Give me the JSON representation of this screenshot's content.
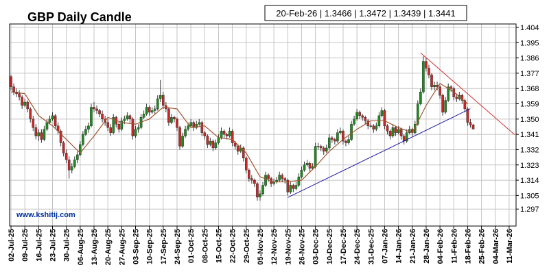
{
  "chart_data": {
    "type": "candlestick",
    "title": "GBP Daily Candle",
    "info_label": "20-Feb-26 | 1.3466 | 1.3472 | 1.3439 | 1.3441",
    "watermark": "www.kshitij.com",
    "up_color": "#1f8a1f",
    "down_color": "#c62828",
    "grid": true,
    "xlim": [
      "02-Jul-25",
      "13-Mar-26"
    ],
    "xticks": [
      "02-Jul-25",
      "09-Jul-25",
      "16-Jul-25",
      "23-Jul-25",
      "30-Jul-25",
      "06-Aug-25",
      "13-Aug-25",
      "20-Aug-25",
      "27-Aug-25",
      "03-Sep-25",
      "10-Sep-25",
      "17-Sep-25",
      "24-Sep-25",
      "01-Oct-25",
      "08-Oct-25",
      "15-Oct-25",
      "22-Oct-25",
      "29-Oct-25",
      "05-Nov-25",
      "12-Nov-25",
      "19-Nov-25",
      "26-Nov-25",
      "03-Dec-25",
      "10-Dec-25",
      "17-Dec-25",
      "24-Dec-25",
      "31-Dec-25",
      "07-Jan-26",
      "14-Jan-26",
      "21-Jan-26",
      "28-Jan-26",
      "04-Feb-26",
      "11-Feb-26",
      "18-Feb-26",
      "25-Feb-26",
      "04-Mar-26",
      "11-Mar-26"
    ],
    "ylim": [
      1.287,
      1.406
    ],
    "yticks": [
      1.297,
      1.305,
      1.314,
      1.323,
      1.332,
      1.341,
      {
        "value": 1.35,
        "label": "1.350"
      },
      1.359,
      1.368,
      1.377,
      1.386,
      1.395,
      1.404
    ],
    "x": [
      "02-Jul-25",
      "03-Jul-25",
      "04-Jul-25",
      "07-Jul-25",
      "08-Jul-25",
      "09-Jul-25",
      "10-Jul-25",
      "11-Jul-25",
      "14-Jul-25",
      "15-Jul-25",
      "16-Jul-25",
      "17-Jul-25",
      "18-Jul-25",
      "21-Jul-25",
      "22-Jul-25",
      "23-Jul-25",
      "24-Jul-25",
      "25-Jul-25",
      "28-Jul-25",
      "29-Jul-25",
      "30-Jul-25",
      "31-Jul-25",
      "01-Aug-25",
      "04-Aug-25",
      "05-Aug-25",
      "06-Aug-25",
      "07-Aug-25",
      "08-Aug-25",
      "11-Aug-25",
      "12-Aug-25",
      "13-Aug-25",
      "14-Aug-25",
      "15-Aug-25",
      "18-Aug-25",
      "19-Aug-25",
      "20-Aug-25",
      "21-Aug-25",
      "22-Aug-25",
      "25-Aug-25",
      "26-Aug-25",
      "27-Aug-25",
      "28-Aug-25",
      "29-Aug-25",
      "01-Sep-25",
      "02-Sep-25",
      "03-Sep-25",
      "04-Sep-25",
      "05-Sep-25",
      "08-Sep-25",
      "09-Sep-25",
      "10-Sep-25",
      "11-Sep-25",
      "12-Sep-25",
      "15-Sep-25",
      "16-Sep-25",
      "17-Sep-25",
      "18-Sep-25",
      "19-Sep-25",
      "22-Sep-25",
      "23-Sep-25",
      "24-Sep-25",
      "25-Sep-25",
      "26-Sep-25",
      "29-Sep-25",
      "30-Sep-25",
      "01-Oct-25",
      "02-Oct-25",
      "03-Oct-25",
      "06-Oct-25",
      "07-Oct-25",
      "08-Oct-25",
      "09-Oct-25",
      "10-Oct-25",
      "13-Oct-25",
      "14-Oct-25",
      "15-Oct-25",
      "16-Oct-25",
      "17-Oct-25",
      "20-Oct-25",
      "21-Oct-25",
      "22-Oct-25",
      "23-Oct-25",
      "24-Oct-25",
      "27-Oct-25",
      "28-Oct-25",
      "29-Oct-25",
      "30-Oct-25",
      "31-Oct-25",
      "03-Nov-25",
      "04-Nov-25",
      "05-Nov-25",
      "06-Nov-25",
      "07-Nov-25",
      "10-Nov-25",
      "11-Nov-25",
      "12-Nov-25",
      "13-Nov-25",
      "14-Nov-25",
      "17-Nov-25",
      "18-Nov-25",
      "19-Nov-25",
      "20-Nov-25",
      "21-Nov-25",
      "24-Nov-25",
      "25-Nov-25",
      "26-Nov-25",
      "27-Nov-25",
      "28-Nov-25",
      "01-Dec-25",
      "02-Dec-25",
      "03-Dec-25",
      "04-Dec-25",
      "05-Dec-25",
      "08-Dec-25",
      "09-Dec-25",
      "10-Dec-25",
      "11-Dec-25",
      "12-Dec-25",
      "15-Dec-25",
      "16-Dec-25",
      "17-Dec-25",
      "18-Dec-25",
      "19-Dec-25",
      "22-Dec-25",
      "23-Dec-25",
      "24-Dec-25",
      "25-Dec-25",
      "26-Dec-25",
      "29-Dec-25",
      "30-Dec-25",
      "31-Dec-25",
      "01-Jan-26",
      "02-Jan-26",
      "05-Jan-26",
      "06-Jan-26",
      "07-Jan-26",
      "08-Jan-26",
      "09-Jan-26",
      "12-Jan-26",
      "13-Jan-26",
      "14-Jan-26",
      "15-Jan-26",
      "16-Jan-26",
      "19-Jan-26",
      "20-Jan-26",
      "21-Jan-26",
      "22-Jan-26",
      "23-Jan-26",
      "26-Jan-26",
      "27-Jan-26",
      "28-Jan-26",
      "29-Jan-26",
      "30-Jan-26",
      "02-Feb-26",
      "03-Feb-26",
      "04-Feb-26",
      "05-Feb-26",
      "06-Feb-26",
      "09-Feb-26",
      "10-Feb-26",
      "11-Feb-26",
      "12-Feb-26",
      "13-Feb-26",
      "16-Feb-26",
      "17-Feb-26",
      "18-Feb-26",
      "19-Feb-26",
      "20-Feb-26"
    ],
    "candles": [
      [
        1.375,
        1.376,
        1.367,
        1.369
      ],
      [
        1.369,
        1.371,
        1.364,
        1.366
      ],
      [
        1.366,
        1.368,
        1.363,
        1.365
      ],
      [
        1.365,
        1.367,
        1.361,
        1.363
      ],
      [
        1.363,
        1.364,
        1.356,
        1.358
      ],
      [
        1.358,
        1.362,
        1.357,
        1.36
      ],
      [
        1.36,
        1.361,
        1.354,
        1.356
      ],
      [
        1.356,
        1.357,
        1.348,
        1.35
      ],
      [
        1.35,
        1.352,
        1.343,
        1.345
      ],
      [
        1.345,
        1.347,
        1.338,
        1.34
      ],
      [
        1.34,
        1.344,
        1.337,
        1.342
      ],
      [
        1.342,
        1.344,
        1.336,
        1.338
      ],
      [
        1.338,
        1.346,
        1.337,
        1.344
      ],
      [
        1.344,
        1.35,
        1.343,
        1.348
      ],
      [
        1.348,
        1.352,
        1.347,
        1.35
      ],
      [
        1.35,
        1.354,
        1.349,
        1.352
      ],
      [
        1.352,
        1.353,
        1.344,
        1.346
      ],
      [
        1.346,
        1.348,
        1.341,
        1.343
      ],
      [
        1.343,
        1.344,
        1.334,
        1.336
      ],
      [
        1.336,
        1.337,
        1.328,
        1.33
      ],
      [
        1.33,
        1.332,
        1.324,
        1.326
      ],
      [
        1.326,
        1.328,
        1.315,
        1.32
      ],
      [
        1.32,
        1.324,
        1.318,
        1.322
      ],
      [
        1.322,
        1.328,
        1.321,
        1.326
      ],
      [
        1.326,
        1.331,
        1.324,
        1.329
      ],
      [
        1.329,
        1.337,
        1.328,
        1.335
      ],
      [
        1.335,
        1.343,
        1.334,
        1.341
      ],
      [
        1.341,
        1.346,
        1.34,
        1.344
      ],
      [
        1.344,
        1.348,
        1.342,
        1.346
      ],
      [
        1.346,
        1.359,
        1.345,
        1.357
      ],
      [
        1.357,
        1.36,
        1.354,
        1.356
      ],
      [
        1.356,
        1.358,
        1.353,
        1.355
      ],
      [
        1.355,
        1.356,
        1.351,
        1.353
      ],
      [
        1.353,
        1.355,
        1.348,
        1.35
      ],
      [
        1.35,
        1.352,
        1.346,
        1.348
      ],
      [
        1.348,
        1.35,
        1.343,
        1.345
      ],
      [
        1.345,
        1.347,
        1.34,
        1.342
      ],
      [
        1.342,
        1.353,
        1.341,
        1.351
      ],
      [
        1.351,
        1.352,
        1.345,
        1.347
      ],
      [
        1.347,
        1.349,
        1.342,
        1.344
      ],
      [
        1.344,
        1.351,
        1.343,
        1.349
      ],
      [
        1.349,
        1.352,
        1.347,
        1.35
      ],
      [
        1.35,
        1.354,
        1.349,
        1.352
      ],
      [
        1.352,
        1.353,
        1.348,
        1.35
      ],
      [
        1.35,
        1.351,
        1.338,
        1.34
      ],
      [
        1.34,
        1.346,
        1.339,
        1.344
      ],
      [
        1.344,
        1.347,
        1.342,
        1.345
      ],
      [
        1.345,
        1.353,
        1.344,
        1.351
      ],
      [
        1.351,
        1.355,
        1.35,
        1.353
      ],
      [
        1.353,
        1.359,
        1.352,
        1.357
      ],
      [
        1.357,
        1.358,
        1.352,
        1.354
      ],
      [
        1.354,
        1.357,
        1.353,
        1.355
      ],
      [
        1.355,
        1.358,
        1.353,
        1.356
      ],
      [
        1.356,
        1.364,
        1.355,
        1.362
      ],
      [
        1.362,
        1.373,
        1.36,
        1.364
      ],
      [
        1.364,
        1.366,
        1.356,
        1.358
      ],
      [
        1.358,
        1.36,
        1.354,
        1.356
      ],
      [
        1.356,
        1.357,
        1.346,
        1.348
      ],
      [
        1.348,
        1.353,
        1.347,
        1.351
      ],
      [
        1.351,
        1.352,
        1.348,
        1.35
      ],
      [
        1.35,
        1.351,
        1.343,
        1.345
      ],
      [
        1.345,
        1.346,
        1.332,
        1.334
      ],
      [
        1.334,
        1.342,
        1.333,
        1.34
      ],
      [
        1.34,
        1.346,
        1.339,
        1.344
      ],
      [
        1.344,
        1.348,
        1.343,
        1.346
      ],
      [
        1.346,
        1.35,
        1.345,
        1.348
      ],
      [
        1.348,
        1.349,
        1.343,
        1.345
      ],
      [
        1.345,
        1.349,
        1.344,
        1.347
      ],
      [
        1.347,
        1.35,
        1.346,
        1.348
      ],
      [
        1.348,
        1.349,
        1.34,
        1.342
      ],
      [
        1.342,
        1.343,
        1.338,
        1.34
      ],
      [
        1.34,
        1.341,
        1.333,
        1.335
      ],
      [
        1.335,
        1.339,
        1.334,
        1.337
      ],
      [
        1.337,
        1.338,
        1.331,
        1.333
      ],
      [
        1.333,
        1.338,
        1.332,
        1.336
      ],
      [
        1.336,
        1.341,
        1.335,
        1.339
      ],
      [
        1.339,
        1.345,
        1.338,
        1.343
      ],
      [
        1.343,
        1.344,
        1.339,
        1.341
      ],
      [
        1.341,
        1.342,
        1.338,
        1.34
      ],
      [
        1.34,
        1.345,
        1.339,
        1.343
      ],
      [
        1.343,
        1.344,
        1.334,
        1.336
      ],
      [
        1.336,
        1.337,
        1.332,
        1.334
      ],
      [
        1.334,
        1.335,
        1.329,
        1.331
      ],
      [
        1.331,
        1.335,
        1.33,
        1.333
      ],
      [
        1.333,
        1.334,
        1.325,
        1.327
      ],
      [
        1.327,
        1.328,
        1.318,
        1.32
      ],
      [
        1.32,
        1.321,
        1.313,
        1.315
      ],
      [
        1.315,
        1.317,
        1.312,
        1.314
      ],
      [
        1.314,
        1.315,
        1.31,
        1.312
      ],
      [
        1.312,
        1.313,
        1.302,
        1.304
      ],
      [
        1.304,
        1.308,
        1.302,
        1.306
      ],
      [
        1.306,
        1.313,
        1.305,
        1.311
      ],
      [
        1.311,
        1.319,
        1.31,
        1.317
      ],
      [
        1.317,
        1.318,
        1.313,
        1.315
      ],
      [
        1.315,
        1.316,
        1.31,
        1.312
      ],
      [
        1.312,
        1.315,
        1.311,
        1.313
      ],
      [
        1.313,
        1.316,
        1.312,
        1.314
      ],
      [
        1.314,
        1.319,
        1.313,
        1.317
      ],
      [
        1.317,
        1.318,
        1.313,
        1.315
      ],
      [
        1.315,
        1.316,
        1.312,
        1.314
      ],
      [
        1.314,
        1.315,
        1.305,
        1.307
      ],
      [
        1.307,
        1.313,
        1.306,
        1.311
      ],
      [
        1.311,
        1.312,
        1.307,
        1.309
      ],
      [
        1.309,
        1.313,
        1.308,
        1.311
      ],
      [
        1.311,
        1.318,
        1.31,
        1.316
      ],
      [
        1.316,
        1.322,
        1.315,
        1.32
      ],
      [
        1.32,
        1.325,
        1.319,
        1.323
      ],
      [
        1.323,
        1.326,
        1.322,
        1.324
      ],
      [
        1.324,
        1.325,
        1.319,
        1.321
      ],
      [
        1.321,
        1.324,
        1.32,
        1.322
      ],
      [
        1.322,
        1.336,
        1.321,
        1.334
      ],
      [
        1.334,
        1.336,
        1.332,
        1.334
      ],
      [
        1.334,
        1.335,
        1.331,
        1.333
      ],
      [
        1.333,
        1.334,
        1.329,
        1.331
      ],
      [
        1.331,
        1.335,
        1.33,
        1.333
      ],
      [
        1.333,
        1.341,
        1.332,
        1.339
      ],
      [
        1.339,
        1.34,
        1.336,
        1.338
      ],
      [
        1.338,
        1.339,
        1.335,
        1.337
      ],
      [
        1.337,
        1.344,
        1.336,
        1.342
      ],
      [
        1.342,
        1.345,
        1.341,
        1.343
      ],
      [
        1.343,
        1.344,
        1.335,
        1.337
      ],
      [
        1.337,
        1.338,
        1.334,
        1.336
      ],
      [
        1.336,
        1.34,
        1.335,
        1.338
      ],
      [
        1.338,
        1.349,
        1.337,
        1.347
      ],
      [
        1.347,
        1.352,
        1.346,
        1.35
      ],
      [
        1.35,
        1.356,
        1.349,
        1.354
      ],
      [
        1.354,
        1.355,
        1.35,
        1.352
      ],
      [
        1.352,
        1.353,
        1.349,
        1.351
      ],
      [
        1.351,
        1.352,
        1.347,
        1.349
      ],
      [
        1.349,
        1.35,
        1.344,
        1.346
      ],
      [
        1.346,
        1.348,
        1.345,
        1.346
      ],
      [
        1.346,
        1.347,
        1.342,
        1.344
      ],
      [
        1.344,
        1.348,
        1.343,
        1.346
      ],
      [
        1.346,
        1.354,
        1.345,
        1.352
      ],
      [
        1.352,
        1.357,
        1.351,
        1.355
      ],
      [
        1.355,
        1.356,
        1.344,
        1.346
      ],
      [
        1.346,
        1.347,
        1.341,
        1.343
      ],
      [
        1.343,
        1.344,
        1.338,
        1.34
      ],
      [
        1.34,
        1.347,
        1.339,
        1.345
      ],
      [
        1.345,
        1.346,
        1.34,
        1.342
      ],
      [
        1.342,
        1.346,
        1.341,
        1.344
      ],
      [
        1.344,
        1.345,
        1.338,
        1.34
      ],
      [
        1.34,
        1.341,
        1.335,
        1.337
      ],
      [
        1.337,
        1.344,
        1.336,
        1.342
      ],
      [
        1.342,
        1.346,
        1.341,
        1.344
      ],
      [
        1.344,
        1.345,
        1.34,
        1.342
      ],
      [
        1.342,
        1.349,
        1.341,
        1.347
      ],
      [
        1.347,
        1.361,
        1.346,
        1.359
      ],
      [
        1.359,
        1.368,
        1.358,
        1.366
      ],
      [
        1.366,
        1.387,
        1.365,
        1.384
      ],
      [
        1.384,
        1.386,
        1.378,
        1.38
      ],
      [
        1.38,
        1.382,
        1.374,
        1.376
      ],
      [
        1.376,
        1.377,
        1.367,
        1.369
      ],
      [
        1.369,
        1.372,
        1.367,
        1.37
      ],
      [
        1.37,
        1.372,
        1.367,
        1.369
      ],
      [
        1.369,
        1.37,
        1.362,
        1.364
      ],
      [
        1.364,
        1.365,
        1.352,
        1.354
      ],
      [
        1.354,
        1.363,
        1.353,
        1.361
      ],
      [
        1.361,
        1.371,
        1.36,
        1.369
      ],
      [
        1.369,
        1.37,
        1.366,
        1.368
      ],
      [
        1.368,
        1.369,
        1.361,
        1.363
      ],
      [
        1.363,
        1.365,
        1.36,
        1.362
      ],
      [
        1.362,
        1.366,
        1.361,
        1.364
      ],
      [
        1.364,
        1.365,
        1.359,
        1.361
      ],
      [
        1.361,
        1.362,
        1.354,
        1.356
      ],
      [
        1.356,
        1.357,
        1.346,
        1.348
      ],
      [
        1.348,
        1.35,
        1.345,
        1.3466
      ],
      [
        1.3466,
        1.3472,
        1.3439,
        1.3441
      ]
    ],
    "ma": {
      "color": "#a0522d",
      "x": [
        "02-Jul-25",
        "09-Jul-25",
        "16-Jul-25",
        "23-Jul-25",
        "30-Jul-25",
        "06-Aug-25",
        "13-Aug-25",
        "20-Aug-25",
        "27-Aug-25",
        "03-Sep-25",
        "10-Sep-25",
        "17-Sep-25",
        "24-Sep-25",
        "01-Oct-25",
        "08-Oct-25",
        "15-Oct-25",
        "22-Oct-25",
        "29-Oct-25",
        "05-Nov-25",
        "12-Nov-25",
        "19-Nov-25",
        "26-Nov-25",
        "03-Dec-25",
        "10-Dec-25",
        "17-Dec-25",
        "24-Dec-25",
        "31-Dec-25",
        "07-Jan-26",
        "14-Jan-26",
        "21-Jan-26",
        "28-Jan-26",
        "04-Feb-26",
        "11-Feb-26",
        "18-Feb-26"
      ],
      "values": [
        1.366,
        1.365,
        1.352,
        1.346,
        1.338,
        1.33,
        1.34,
        1.351,
        1.348,
        1.347,
        1.35,
        1.357,
        1.356,
        1.345,
        1.346,
        1.339,
        1.338,
        1.33,
        1.316,
        1.313,
        1.313,
        1.314,
        1.322,
        1.331,
        1.338,
        1.344,
        1.349,
        1.349,
        1.345,
        1.342,
        1.358,
        1.371,
        1.366,
        1.359
      ]
    },
    "trendlines": [
      {
        "color": "#d32f2f",
        "x": [
          "26-Jan-26",
          "13-Mar-26"
        ],
        "values": [
          1.389,
          1.3408
        ]
      },
      {
        "color": "#1a1aa6",
        "x": [
          "19-Nov-25",
          "19-Feb-26"
        ],
        "values": [
          1.3038,
          1.3561
        ]
      }
    ]
  }
}
